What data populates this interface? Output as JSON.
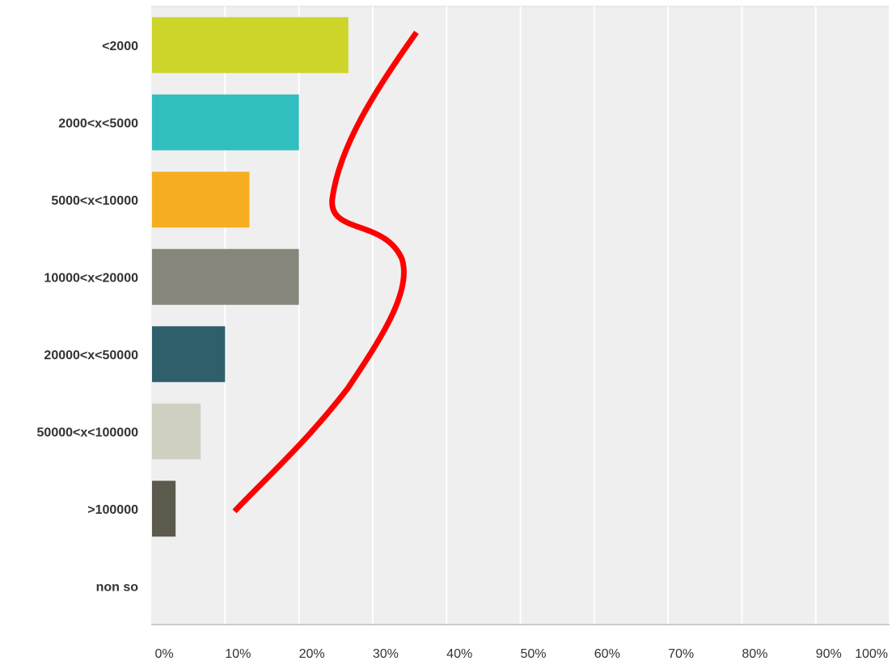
{
  "chart_data": {
    "type": "bar",
    "orientation": "horizontal",
    "categories": [
      "<2000",
      "2000<x<5000",
      "5000<x<10000",
      "10000<x<20000",
      "20000<x<50000",
      "50000<x<100000",
      ">100000",
      "non so"
    ],
    "values": [
      26.7,
      20.0,
      13.3,
      20.0,
      10.0,
      6.7,
      3.3,
      0
    ],
    "value_unit": "%",
    "colors": [
      "#cdd52b",
      "#31bebf",
      "#f6ae20",
      "#86877a",
      "#2f5f6b",
      "#d0d0c2",
      "#5b5a4c",
      "#999999"
    ],
    "xlim": [
      0,
      100
    ],
    "x_ticks": [
      "0%",
      "10%",
      "20%",
      "30%",
      "40%",
      "50%",
      "60%",
      "70%",
      "80%",
      "90%",
      "100%"
    ],
    "grid": true,
    "plot_background": "#efefef",
    "annotation": {
      "type": "hand-drawn curve",
      "color": "#ff0000"
    },
    "title": "",
    "xlabel": "",
    "ylabel": ""
  }
}
